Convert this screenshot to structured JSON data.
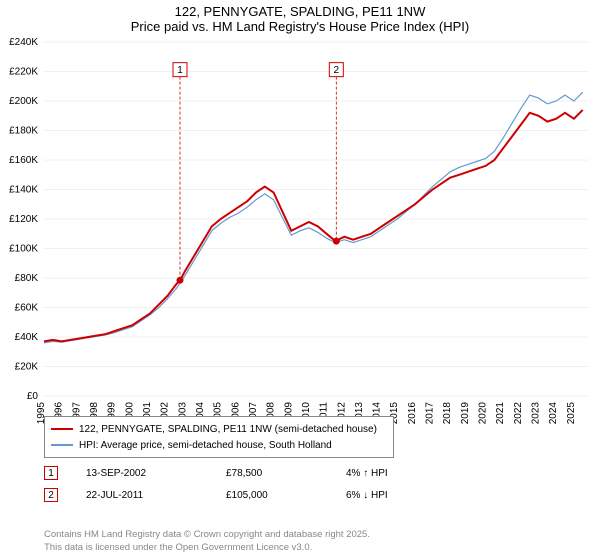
{
  "title": {
    "line1": "122, PENNYGATE, SPALDING, PE11 1NW",
    "line2": "Price paid vs. HM Land Registry's House Price Index (HPI)"
  },
  "chart": {
    "type": "line",
    "background_color": "#ffffff",
    "grid_color": "#e0e0e0",
    "x": {
      "min": 1995,
      "max": 2025.8,
      "ticks": [
        1995,
        1996,
        1997,
        1998,
        1999,
        2000,
        2001,
        2002,
        2003,
        2004,
        2005,
        2006,
        2007,
        2008,
        2009,
        2010,
        2011,
        2012,
        2013,
        2014,
        2015,
        2016,
        2017,
        2018,
        2019,
        2020,
        2021,
        2022,
        2023,
        2024,
        2025
      ]
    },
    "y": {
      "min": 0,
      "max": 240000,
      "ticks": [
        0,
        20000,
        40000,
        60000,
        80000,
        100000,
        120000,
        140000,
        160000,
        180000,
        200000,
        220000,
        240000
      ],
      "tick_labels": [
        "£0",
        "£20K",
        "£40K",
        "£60K",
        "£80K",
        "£100K",
        "£120K",
        "£140K",
        "£160K",
        "£180K",
        "£200K",
        "£220K",
        "£240K"
      ]
    },
    "series": [
      {
        "name": "red",
        "color": "#cc0000",
        "width": 2,
        "label": "122, PENNYGATE, SPALDING, PE11 1NW (semi-detached house)",
        "points": [
          [
            1995.0,
            37000
          ],
          [
            1995.5,
            38000
          ],
          [
            1996.0,
            37000
          ],
          [
            1996.5,
            38000
          ],
          [
            1997.0,
            39000
          ],
          [
            1997.5,
            40000
          ],
          [
            1998.0,
            41000
          ],
          [
            1998.5,
            42000
          ],
          [
            1999.0,
            44000
          ],
          [
            1999.5,
            46000
          ],
          [
            2000.0,
            48000
          ],
          [
            2000.5,
            52000
          ],
          [
            2001.0,
            56000
          ],
          [
            2001.5,
            62000
          ],
          [
            2002.0,
            68000
          ],
          [
            2002.5,
            76000
          ],
          [
            2002.7,
            78500
          ],
          [
            2003.0,
            85000
          ],
          [
            2003.5,
            95000
          ],
          [
            2004.0,
            105000
          ],
          [
            2004.5,
            115000
          ],
          [
            2005.0,
            120000
          ],
          [
            2005.5,
            124000
          ],
          [
            2006.0,
            128000
          ],
          [
            2006.5,
            132000
          ],
          [
            2007.0,
            138000
          ],
          [
            2007.5,
            142000
          ],
          [
            2008.0,
            138000
          ],
          [
            2008.5,
            125000
          ],
          [
            2009.0,
            112000
          ],
          [
            2009.5,
            115000
          ],
          [
            2010.0,
            118000
          ],
          [
            2010.5,
            115000
          ],
          [
            2011.0,
            110000
          ],
          [
            2011.5,
            105000
          ],
          [
            2012.0,
            108000
          ],
          [
            2012.5,
            106000
          ],
          [
            2013.0,
            108000
          ],
          [
            2013.5,
            110000
          ],
          [
            2014.0,
            114000
          ],
          [
            2014.5,
            118000
          ],
          [
            2015.0,
            122000
          ],
          [
            2015.5,
            126000
          ],
          [
            2016.0,
            130000
          ],
          [
            2016.5,
            135000
          ],
          [
            2017.0,
            140000
          ],
          [
            2017.5,
            144000
          ],
          [
            2018.0,
            148000
          ],
          [
            2018.5,
            150000
          ],
          [
            2019.0,
            152000
          ],
          [
            2019.5,
            154000
          ],
          [
            2020.0,
            156000
          ],
          [
            2020.5,
            160000
          ],
          [
            2021.0,
            168000
          ],
          [
            2021.5,
            176000
          ],
          [
            2022.0,
            184000
          ],
          [
            2022.5,
            192000
          ],
          [
            2023.0,
            190000
          ],
          [
            2023.5,
            186000
          ],
          [
            2024.0,
            188000
          ],
          [
            2024.5,
            192000
          ],
          [
            2025.0,
            188000
          ],
          [
            2025.5,
            194000
          ]
        ]
      },
      {
        "name": "blue",
        "color": "#6699cc",
        "width": 1.2,
        "label": "HPI: Average price, semi-detached house, South Holland",
        "points": [
          [
            1995.0,
            36000
          ],
          [
            1995.5,
            37000
          ],
          [
            1996.0,
            36500
          ],
          [
            1996.5,
            37500
          ],
          [
            1997.0,
            38500
          ],
          [
            1997.5,
            39500
          ],
          [
            1998.0,
            40500
          ],
          [
            1998.5,
            41500
          ],
          [
            1999.0,
            43000
          ],
          [
            1999.5,
            45000
          ],
          [
            2000.0,
            47000
          ],
          [
            2000.5,
            51000
          ],
          [
            2001.0,
            55000
          ],
          [
            2001.5,
            60000
          ],
          [
            2002.0,
            66000
          ],
          [
            2002.5,
            73000
          ],
          [
            2003.0,
            82000
          ],
          [
            2003.5,
            92000
          ],
          [
            2004.0,
            102000
          ],
          [
            2004.5,
            112000
          ],
          [
            2005.0,
            117000
          ],
          [
            2005.5,
            121000
          ],
          [
            2006.0,
            124000
          ],
          [
            2006.5,
            128000
          ],
          [
            2007.0,
            133000
          ],
          [
            2007.5,
            137000
          ],
          [
            2008.0,
            133000
          ],
          [
            2008.5,
            121000
          ],
          [
            2009.0,
            109000
          ],
          [
            2009.5,
            112000
          ],
          [
            2010.0,
            114000
          ],
          [
            2010.5,
            111000
          ],
          [
            2011.0,
            107000
          ],
          [
            2011.5,
            104000
          ],
          [
            2012.0,
            106000
          ],
          [
            2012.5,
            104000
          ],
          [
            2013.0,
            106000
          ],
          [
            2013.5,
            108000
          ],
          [
            2014.0,
            112000
          ],
          [
            2014.5,
            116000
          ],
          [
            2015.0,
            120000
          ],
          [
            2015.5,
            125000
          ],
          [
            2016.0,
            130000
          ],
          [
            2016.5,
            136000
          ],
          [
            2017.0,
            142000
          ],
          [
            2017.5,
            147000
          ],
          [
            2018.0,
            152000
          ],
          [
            2018.5,
            155000
          ],
          [
            2019.0,
            157000
          ],
          [
            2019.5,
            159000
          ],
          [
            2020.0,
            161000
          ],
          [
            2020.5,
            166000
          ],
          [
            2021.0,
            175000
          ],
          [
            2021.5,
            185000
          ],
          [
            2022.0,
            195000
          ],
          [
            2022.5,
            204000
          ],
          [
            2023.0,
            202000
          ],
          [
            2023.5,
            198000
          ],
          [
            2024.0,
            200000
          ],
          [
            2024.5,
            204000
          ],
          [
            2025.0,
            200000
          ],
          [
            2025.5,
            206000
          ]
        ]
      }
    ],
    "markers": [
      {
        "n": "1",
        "x": 2002.7,
        "y": 78500,
        "box_y": 226000
      },
      {
        "n": "2",
        "x": 2011.55,
        "y": 105000,
        "box_y": 226000
      }
    ]
  },
  "legend": {
    "border_color": "#888888",
    "items": [
      {
        "color": "#cc0000",
        "label": "122, PENNYGATE, SPALDING, PE11 1NW (semi-detached house)"
      },
      {
        "color": "#6699cc",
        "label": "HPI: Average price, semi-detached house, South Holland"
      }
    ]
  },
  "transactions": [
    {
      "n": "1",
      "date": "13-SEP-2002",
      "price": "£78,500",
      "delta": "4% ↑ HPI"
    },
    {
      "n": "2",
      "date": "22-JUL-2011",
      "price": "£105,000",
      "delta": "6% ↓ HPI"
    }
  ],
  "footer": {
    "line1": "Contains HM Land Registry data © Crown copyright and database right 2025.",
    "line2": "This data is licensed under the Open Government Licence v3.0."
  }
}
